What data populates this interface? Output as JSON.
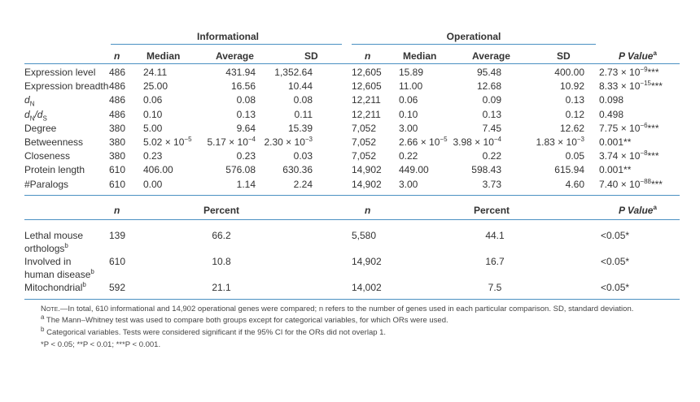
{
  "groups": {
    "informational": "Informational",
    "operational": "Operational"
  },
  "headers": {
    "n": "n",
    "median": "Median",
    "average": "Average",
    "sd": "SD",
    "pvalue": "P Value",
    "pvalue_sup": "a",
    "percent": "Percent"
  },
  "rows": [
    {
      "label": "Expression level",
      "i_n": "486",
      "i_median": "24.11",
      "i_avg": "431.94",
      "i_sd": "1,352.64",
      "o_n": "12,605",
      "o_median": "15.89",
      "o_avg": "95.48",
      "o_sd": "400.00",
      "p": "2.73 × 10",
      "p_exp": "−9",
      "p_stars": "***"
    },
    {
      "label": "Expression breadth",
      "i_n": "486",
      "i_median": "25.00",
      "i_avg": "16.56",
      "i_sd": "10.44",
      "o_n": "12,605",
      "o_median": "11.00",
      "o_avg": "12.68",
      "o_sd": "10.92",
      "p": "8.33 × 10",
      "p_exp": "−15",
      "p_stars": "***"
    },
    {
      "label_main": "d",
      "label_sub": "N",
      "i_n": "486",
      "i_median": "0.06",
      "i_avg": "0.08",
      "i_sd": "0.08",
      "o_n": "12,211",
      "o_median": "0.06",
      "o_avg": "0.09",
      "o_sd": "0.13",
      "p": "0.098"
    },
    {
      "label_main": "d",
      "label_sub": "N",
      "label_slash": "/d",
      "label_sub2": "S",
      "i_n": "486",
      "i_median": "0.10",
      "i_avg": "0.13",
      "i_sd": "0.11",
      "o_n": "12,211",
      "o_median": "0.10",
      "o_avg": "0.13",
      "o_sd": "0.12",
      "p": "0.498"
    },
    {
      "label": "Degree",
      "i_n": "380",
      "i_median": "5.00",
      "i_avg": "9.64",
      "i_sd": "15.39",
      "o_n": "7,052",
      "o_median": "3.00",
      "o_avg": "7.45",
      "o_sd": "12.62",
      "p": "7.75 × 10",
      "p_exp": "−6",
      "p_stars": "***"
    },
    {
      "label": "Betweenness",
      "i_n": "380",
      "i_median": "5.02 × 10",
      "i_median_exp": "−5",
      "i_avg": "5.17 × 10",
      "i_avg_exp": "−4",
      "i_sd": "2.30 × 10",
      "i_sd_exp": "−3",
      "o_n": "7,052",
      "o_median": "2.66 × 10",
      "o_median_exp": "−5",
      "o_avg": "3.98 × 10",
      "o_avg_exp": "−4",
      "o_sd": "1.83 × 10",
      "o_sd_exp": "−3",
      "p": "0.001",
      "p_stars": "**"
    },
    {
      "label": "Closeness",
      "i_n": "380",
      "i_median": "0.23",
      "i_avg": "0.23",
      "i_sd": "0.03",
      "o_n": "7,052",
      "o_median": "0.22",
      "o_avg": "0.22",
      "o_sd": "0.05",
      "p": "3.74 × 10",
      "p_exp": "−8",
      "p_stars": "***"
    },
    {
      "label": "Protein length",
      "i_n": "610",
      "i_median": "406.00",
      "i_avg": "576.08",
      "i_sd": "630.36",
      "o_n": "14,902",
      "o_median": "449.00",
      "o_avg": "598.43",
      "o_sd": "615.94",
      "p": "0.001",
      "p_stars": "**"
    },
    {
      "label": "#Paralogs",
      "i_n": "610",
      "i_median": "0.00",
      "i_avg": "1.14",
      "i_sd": "2.24",
      "o_n": "14,902",
      "o_median": "3.00",
      "o_avg": "3.73",
      "o_sd": "4.60",
      "p": "7.40 × 10",
      "p_exp": "−88",
      "p_stars": "***"
    }
  ],
  "cat_rows": [
    {
      "line1": "Lethal mouse",
      "line2": "orthologs",
      "sup": "b",
      "i_n": "139",
      "i_pct": "66.2",
      "o_n": "5,580",
      "o_pct": "44.1",
      "p": "<0.05*"
    },
    {
      "line1": "Involved in",
      "line2": "human disease",
      "sup": "b",
      "i_n": "610",
      "i_pct": "10.8",
      "o_n": "14,902",
      "o_pct": "16.7",
      "p": "<0.05*"
    },
    {
      "line1": "Mitochondrial",
      "sup": "b",
      "i_n": "592",
      "i_pct": "21.1",
      "o_n": "14,002",
      "o_pct": "7.5",
      "p": "<0.05*"
    }
  ],
  "notes": {
    "note_prefix": "Note.",
    "note_text": "—In total, 610 informational and 14,902 operational genes were compared; n refers to the number of genes used in each particular comparison. SD, standard deviation.",
    "note_a_sup": "a",
    "note_a": " The Mann–Whitney test was used to compare both groups except for categorical variables, for which ORs were used.",
    "note_b_sup": "b",
    "note_b": " Categorical variables. Tests were considered significant if the 95% CI for the ORs did not overlap 1.",
    "note_sig": "*P < 0.05; **P < 0.01; ***P < 0.001."
  },
  "colors": {
    "rule": "#4a90c2",
    "text": "#333333"
  }
}
